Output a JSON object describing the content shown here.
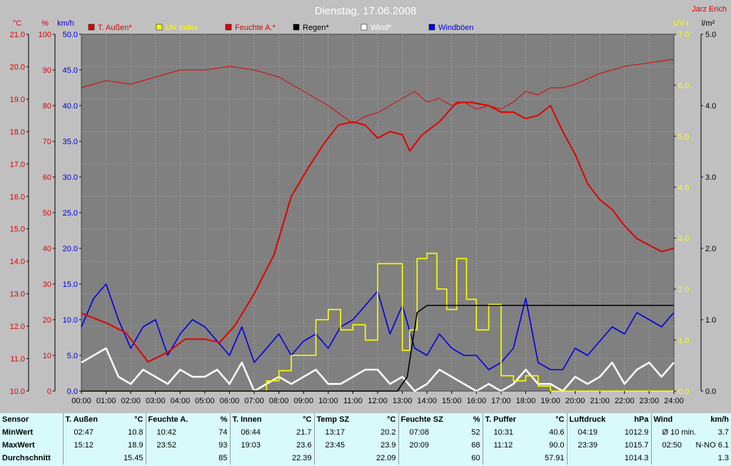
{
  "chart_data": {
    "type": "line",
    "title": "Dienstag, 17.06.2008",
    "station": "Jarz Erich",
    "x_ticks": [
      "00:00",
      "01:00",
      "02:00",
      "03:00",
      "04:00",
      "05:00",
      "06:00",
      "07:00",
      "08:00",
      "09:00",
      "10:00",
      "11:00",
      "12:00",
      "13:00",
      "14:00",
      "15:00",
      "16:00",
      "17:00",
      "18:00",
      "19:00",
      "20:00",
      "21:00",
      "22:00",
      "23:00",
      "24:00"
    ],
    "axes": {
      "temp": {
        "unit": "°C",
        "min": 10,
        "max": 21,
        "ticks": [
          "10.0",
          "11.0",
          "12.0",
          "13.0",
          "14.0",
          "15.0",
          "16.0",
          "17.0",
          "18.0",
          "19.0",
          "20.0",
          "21.0"
        ]
      },
      "hum": {
        "unit": "%",
        "min": 0,
        "max": 100,
        "ticks": [
          "0",
          "10",
          "20",
          "30",
          "40",
          "50",
          "60",
          "70",
          "80",
          "90",
          "100"
        ]
      },
      "wind": {
        "unit": "km/h",
        "min": 0,
        "max": 50,
        "ticks": [
          "0.0",
          "5.0",
          "10.0",
          "15.0",
          "20.0",
          "25.0",
          "30.0",
          "35.0",
          "40.0",
          "45.0",
          "50.0"
        ]
      },
      "uv": {
        "unit": "UV-I",
        "min": 0,
        "max": 7,
        "ticks": [
          "0.0",
          "1.0",
          "2.0",
          "3.0",
          "4.0",
          "5.0",
          "6.0",
          "7.0"
        ]
      },
      "rain": {
        "unit": "l/m²",
        "min": 0,
        "max": 5,
        "ticks": [
          "0.0",
          "1.0",
          "2.0",
          "3.0",
          "4.0",
          "5.0"
        ]
      }
    },
    "legend": [
      {
        "name": "T. Außen*",
        "color": "#e00000"
      },
      {
        "name": "UV Index",
        "color": "#ffff00"
      },
      {
        "name": "Feuchte A.*",
        "color": "#e00000"
      },
      {
        "name": "Regen*",
        "color": "#000000"
      },
      {
        "name": "Wind*",
        "color": "#ffffff"
      },
      {
        "name": "Windböen",
        "color": "#0000e0"
      }
    ],
    "series": {
      "temp": {
        "axis": "temp",
        "color": "#e00000",
        "x": [
          0,
          1,
          1.8,
          2.7,
          3.5,
          4.2,
          5.0,
          5.6,
          6.2,
          7.0,
          7.8,
          8.5,
          9.2,
          9.8,
          10.4,
          11.0,
          11.5,
          12.0,
          12.5,
          13.0,
          13.3,
          13.8,
          14.5,
          15.2,
          15.8,
          16.5,
          17.0,
          17.5,
          18.0,
          18.5,
          19.0,
          19.5,
          20.0,
          20.5,
          21.0,
          21.5,
          22.0,
          22.5,
          23.0,
          23.5,
          24.0
        ],
        "y": [
          12.4,
          12.1,
          11.8,
          10.9,
          11.2,
          11.6,
          11.6,
          11.5,
          12.0,
          13.0,
          14.2,
          16.0,
          16.9,
          17.6,
          18.2,
          18.3,
          18.2,
          17.8,
          18.0,
          17.9,
          17.4,
          17.9,
          18.3,
          18.9,
          18.9,
          18.8,
          18.6,
          18.6,
          18.4,
          18.5,
          18.8,
          18.0,
          17.3,
          16.4,
          15.9,
          15.6,
          15.1,
          14.7,
          14.5,
          14.3,
          14.4
        ]
      },
      "humidity": {
        "axis": "hum",
        "color": "#e00000",
        "x": [
          0,
          1,
          2,
          3,
          4,
          5,
          6,
          7,
          8,
          9,
          10,
          11,
          11.5,
          12,
          12.5,
          13,
          13.5,
          14,
          14.5,
          15,
          15.5,
          16,
          16.5,
          17,
          17.5,
          18,
          18.5,
          19,
          19.5,
          20,
          21,
          22,
          23,
          24
        ],
        "y": [
          85,
          87,
          86,
          88,
          90,
          90,
          91,
          90,
          88,
          84,
          80,
          75,
          77,
          78,
          80,
          82,
          84,
          81,
          82,
          80,
          81,
          79,
          80,
          79,
          81,
          84,
          83,
          85,
          85,
          86,
          89,
          91,
          92,
          93
        ]
      },
      "uv": {
        "axis": "uv",
        "color": "#ffff00",
        "x": [
          0,
          7.0,
          7.5,
          8.0,
          8.5,
          9.0,
          9.5,
          10.0,
          10.5,
          11.0,
          11.5,
          12.0,
          12.5,
          13.0,
          13.3,
          13.6,
          14.0,
          14.4,
          14.8,
          15.2,
          15.6,
          16.0,
          16.5,
          17.0,
          17.5,
          18.0,
          18.5,
          19.0,
          24.0
        ],
        "y": [
          0,
          0,
          0.2,
          0.4,
          0.7,
          0.7,
          1.4,
          1.6,
          1.2,
          1.3,
          1.0,
          2.5,
          2.5,
          0.8,
          1.2,
          2.6,
          2.7,
          2.0,
          1.6,
          2.6,
          1.8,
          1.2,
          1.7,
          0.3,
          0.2,
          0.3,
          0.1,
          0,
          0
        ]
      },
      "rain": {
        "axis": "rain",
        "color": "#000000",
        "x": [
          0,
          12.8,
          13.2,
          13.6,
          14.0,
          14.5,
          24.0
        ],
        "y": [
          0,
          0,
          0.2,
          1.1,
          1.2,
          1.2,
          1.2
        ]
      },
      "wind": {
        "axis": "wind",
        "color": "#ffffff",
        "x": [
          0,
          0.5,
          1,
          1.5,
          2,
          2.5,
          3,
          3.5,
          4,
          4.5,
          5,
          5.5,
          6,
          6.5,
          7,
          7.5,
          8,
          8.5,
          9,
          9.5,
          10,
          10.5,
          11,
          11.5,
          12,
          12.5,
          13,
          13.5,
          14,
          14.5,
          15,
          15.5,
          16,
          16.5,
          17,
          17.5,
          18,
          18.5,
          19,
          19.5,
          20,
          20.5,
          21,
          21.5,
          22,
          22.5,
          23,
          23.5,
          24
        ],
        "y": [
          4,
          5,
          6,
          2,
          1,
          3,
          2,
          1,
          3,
          2,
          2,
          3,
          1,
          4,
          0,
          1,
          2,
          1,
          2,
          3,
          1,
          1,
          2,
          3,
          3,
          1,
          2,
          0,
          1,
          3,
          2,
          1,
          0,
          1,
          0,
          1,
          3,
          1,
          1,
          0,
          2,
          1,
          2,
          4,
          1,
          3,
          4,
          2,
          4
        ]
      },
      "gusts": {
        "axis": "wind",
        "color": "#0000e0",
        "x": [
          0,
          0.5,
          1,
          1.5,
          2,
          2.5,
          3,
          3.5,
          4,
          4.5,
          5,
          5.5,
          6,
          6.5,
          7,
          7.5,
          8,
          8.5,
          9,
          9.5,
          10,
          10.5,
          11,
          11.5,
          12,
          12.5,
          13,
          13.5,
          14,
          14.5,
          15,
          15.5,
          16,
          16.5,
          17,
          17.5,
          18,
          18.5,
          19,
          19.5,
          20,
          20.5,
          21,
          21.5,
          22,
          22.5,
          23,
          23.5,
          24
        ],
        "y": [
          9,
          13,
          15,
          10,
          6,
          9,
          10,
          5,
          8,
          10,
          9,
          7,
          5,
          9,
          4,
          6,
          8,
          5,
          7,
          8,
          6,
          9,
          10,
          12,
          14,
          8,
          12,
          6,
          5,
          8,
          6,
          5,
          5,
          3,
          4,
          6,
          13,
          4,
          3,
          3,
          6,
          5,
          7,
          9,
          8,
          11,
          10,
          9,
          11
        ]
      }
    }
  },
  "table": {
    "headers": [
      {
        "label": "Sensor",
        "unit": ""
      },
      {
        "label": "T. Außen",
        "unit": "°C"
      },
      {
        "label": "Feuchte A.",
        "unit": "%"
      },
      {
        "label": "T. Innen",
        "unit": "°C"
      },
      {
        "label": "Temp SZ",
        "unit": "°C"
      },
      {
        "label": "Feuchte SZ",
        "unit": "%"
      },
      {
        "label": "T. Puffer",
        "unit": "°C"
      },
      {
        "label": "Luftdruck",
        "unit": "hPa"
      },
      {
        "label": "Wind",
        "unit": "km/h"
      }
    ],
    "rows": [
      {
        "label": "MinWert",
        "cells": [
          [
            "02:47",
            "10.8"
          ],
          [
            "10:42",
            "74"
          ],
          [
            "06:44",
            "21.7"
          ],
          [
            "13:17",
            "20.2"
          ],
          [
            "07:08",
            "52"
          ],
          [
            "10:31",
            "40.6"
          ],
          [
            "04:19",
            "1012.9"
          ],
          [
            "Ø 10 min.",
            "3.7"
          ]
        ]
      },
      {
        "label": "MaxWert",
        "cells": [
          [
            "15:12",
            "18.9"
          ],
          [
            "23:52",
            "93"
          ],
          [
            "19:03",
            "23.6"
          ],
          [
            "23:45",
            "23.9"
          ],
          [
            "20:09",
            "68"
          ],
          [
            "11:12",
            "90.0"
          ],
          [
            "23:39",
            "1015.7"
          ],
          [
            "02:50",
            "N-NO 6.1"
          ]
        ]
      },
      {
        "label": "Durchschnitt",
        "cells": [
          [
            "",
            "15.45"
          ],
          [
            "",
            "85"
          ],
          [
            "",
            "22.39"
          ],
          [
            "",
            "22.09"
          ],
          [
            "",
            "60"
          ],
          [
            "",
            "57.91"
          ],
          [
            "",
            "1014.3"
          ],
          [
            "",
            "1.3"
          ]
        ]
      }
    ]
  }
}
